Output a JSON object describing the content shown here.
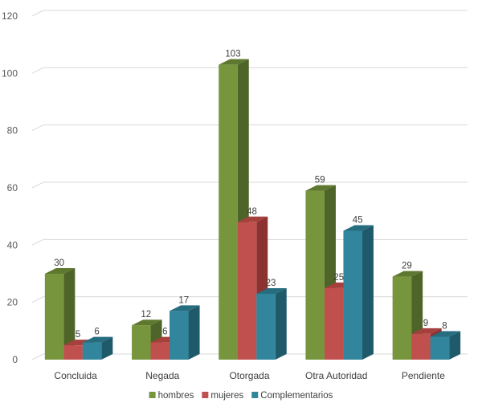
{
  "chart_data": {
    "type": "bar",
    "title": "",
    "xlabel": "",
    "ylabel": "",
    "categories": [
      "Concluida",
      "Negada",
      "Otorgada",
      "Otra Autoridad",
      "Pendiente"
    ],
    "ylim": [
      0,
      120
    ],
    "yticks": [
      0,
      20,
      40,
      60,
      80,
      100,
      120
    ],
    "grid": true,
    "legend_position": "bottom",
    "series": [
      {
        "name": "hombres",
        "values": [
          30,
          12,
          103,
          59,
          29
        ],
        "color": "#77953d",
        "side_color": "#4e6428",
        "top_color": "#5f7830"
      },
      {
        "name": "mujeres",
        "values": [
          5,
          6,
          48,
          25,
          9
        ],
        "color": "#c0504d",
        "side_color": "#8c3230",
        "top_color": "#a5403d"
      },
      {
        "name": "Complementarios",
        "values": [
          6,
          17,
          23,
          45,
          8
        ],
        "color": "#31859c",
        "side_color": "#1f5a6a",
        "top_color": "#266d80"
      }
    ]
  }
}
